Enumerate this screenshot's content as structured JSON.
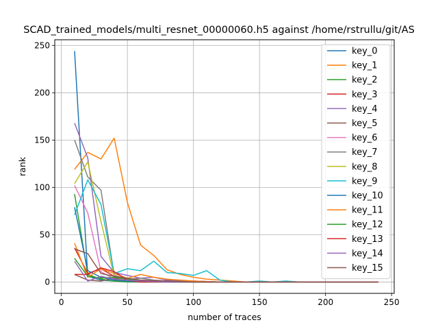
{
  "chart_data": {
    "type": "line",
    "title": "SCAD_trained_models/multi_resnet_00000060.h5 against /home/rstrullu/git/AS",
    "xlabel": "number of traces",
    "ylabel": "rank",
    "xlim": [
      -5,
      252
    ],
    "ylim": [
      -12,
      256
    ],
    "xticks": [
      0,
      50,
      100,
      150,
      200,
      250
    ],
    "yticks": [
      0,
      50,
      100,
      150,
      200,
      250
    ],
    "grid": true,
    "legend_position": "top-right",
    "series": [
      {
        "name": "key_0",
        "color": "#1f77b4",
        "x": [
          10,
          20,
          30,
          40,
          50,
          60,
          70,
          80,
          90,
          100,
          120,
          140,
          160,
          180,
          200,
          220,
          240
        ],
        "y": [
          244,
          6,
          2,
          1,
          0,
          0,
          0,
          0,
          0,
          0,
          0,
          0,
          0,
          0,
          0,
          0,
          0
        ]
      },
      {
        "name": "key_1",
        "color": "#ff7f0e",
        "x": [
          10,
          20,
          30,
          40,
          50,
          60,
          70,
          80,
          90,
          100,
          110,
          120,
          130,
          140,
          160,
          180,
          200,
          220,
          240
        ],
        "y": [
          119,
          137,
          130,
          152,
          84,
          39,
          28,
          13,
          8,
          5,
          3,
          2,
          1,
          0,
          0,
          0,
          0,
          0,
          0
        ]
      },
      {
        "name": "key_2",
        "color": "#2ca02c",
        "x": [
          10,
          20,
          30,
          40,
          50,
          60,
          80,
          100,
          120,
          140,
          160,
          180,
          200,
          220,
          240
        ],
        "y": [
          93,
          8,
          3,
          1,
          0,
          0,
          0,
          0,
          0,
          0,
          0,
          0,
          0,
          0,
          0
        ]
      },
      {
        "name": "key_3",
        "color": "#d62728",
        "x": [
          10,
          20,
          30,
          40,
          50,
          60,
          80,
          100,
          120,
          140,
          160,
          180,
          200,
          220,
          240
        ],
        "y": [
          36,
          9,
          14,
          6,
          2,
          1,
          0,
          0,
          0,
          0,
          0,
          0,
          0,
          0,
          0
        ]
      },
      {
        "name": "key_4",
        "color": "#9467bd",
        "x": [
          10,
          20,
          30,
          40,
          50,
          60,
          70,
          80,
          100,
          120,
          140,
          160,
          180,
          200,
          220,
          240
        ],
        "y": [
          168,
          131,
          27,
          10,
          7,
          4,
          5,
          2,
          1,
          0,
          0,
          0,
          0,
          0,
          0,
          0
        ]
      },
      {
        "name": "key_5",
        "color": "#8c564b",
        "x": [
          10,
          20,
          30,
          40,
          50,
          60,
          80,
          100,
          120,
          140,
          160,
          180,
          200,
          220,
          240
        ],
        "y": [
          8,
          2,
          1,
          4,
          2,
          1,
          0,
          0,
          0,
          0,
          0,
          0,
          0,
          0,
          0
        ]
      },
      {
        "name": "key_6",
        "color": "#e377c2",
        "x": [
          10,
          20,
          30,
          40,
          50,
          60,
          80,
          100,
          120,
          140,
          160,
          180,
          200,
          220,
          240
        ],
        "y": [
          102,
          73,
          11,
          3,
          1,
          0,
          0,
          0,
          0,
          0,
          0,
          0,
          0,
          0,
          0
        ]
      },
      {
        "name": "key_7",
        "color": "#7f7f7f",
        "x": [
          10,
          20,
          30,
          40,
          50,
          60,
          70,
          80,
          100,
          120,
          140,
          160,
          180,
          200,
          220,
          240
        ],
        "y": [
          150,
          111,
          97,
          7,
          3,
          4,
          2,
          1,
          1,
          0,
          0,
          0,
          0,
          0,
          0,
          0
        ]
      },
      {
        "name": "key_8",
        "color": "#bcbd22",
        "x": [
          10,
          20,
          30,
          40,
          50,
          60,
          80,
          100,
          120,
          140,
          160,
          180,
          200,
          220,
          240
        ],
        "y": [
          104,
          127,
          64,
          6,
          1,
          0,
          0,
          0,
          0,
          0,
          0,
          0,
          0,
          0,
          0
        ]
      },
      {
        "name": "key_9",
        "color": "#17becf",
        "x": [
          10,
          20,
          30,
          40,
          50,
          60,
          70,
          80,
          90,
          100,
          110,
          120,
          130,
          140,
          150,
          160,
          170,
          180,
          200,
          220,
          240
        ],
        "y": [
          71,
          108,
          82,
          9,
          14,
          12,
          22,
          10,
          9,
          7,
          12,
          2,
          0,
          0,
          1,
          0,
          1,
          0,
          0,
          0,
          0
        ]
      },
      {
        "name": "key_10",
        "color": "#1f77b4",
        "x": [
          10,
          20,
          30,
          40,
          50,
          60,
          80,
          100,
          120,
          140,
          160,
          180,
          200,
          220,
          240
        ],
        "y": [
          79,
          12,
          5,
          2,
          1,
          0,
          0,
          0,
          0,
          0,
          0,
          0,
          0,
          0,
          0
        ]
      },
      {
        "name": "key_11",
        "color": "#ff7f0e",
        "x": [
          10,
          20,
          30,
          40,
          50,
          60,
          70,
          80,
          100,
          120,
          140,
          160,
          180,
          200,
          220,
          240
        ],
        "y": [
          41,
          5,
          14,
          9,
          4,
          8,
          5,
          3,
          1,
          0,
          0,
          0,
          0,
          0,
          0,
          0
        ]
      },
      {
        "name": "key_12",
        "color": "#2ca02c",
        "x": [
          10,
          20,
          30,
          40,
          50,
          60,
          80,
          100,
          120,
          140,
          160,
          180,
          200,
          220,
          240
        ],
        "y": [
          25,
          6,
          4,
          5,
          3,
          1,
          0,
          0,
          0,
          0,
          0,
          0,
          0,
          0,
          0
        ]
      },
      {
        "name": "key_13",
        "color": "#d62728",
        "x": [
          10,
          20,
          30,
          40,
          50,
          60,
          80,
          100,
          120,
          140,
          160,
          180,
          200,
          220,
          240
        ],
        "y": [
          8,
          8,
          15,
          11,
          2,
          0,
          0,
          0,
          0,
          0,
          0,
          0,
          0,
          0,
          0
        ]
      },
      {
        "name": "key_14",
        "color": "#9467bd",
        "x": [
          10,
          20,
          30,
          40,
          50,
          60,
          80,
          100,
          120,
          140,
          160,
          180,
          200,
          220,
          240
        ],
        "y": [
          22,
          1,
          6,
          3,
          2,
          1,
          0,
          0,
          0,
          0,
          0,
          0,
          0,
          0,
          0
        ]
      },
      {
        "name": "key_15",
        "color": "#8c564b",
        "x": [
          10,
          20,
          30,
          40,
          50,
          60,
          80,
          100,
          120,
          140,
          160,
          180,
          200,
          220,
          240
        ],
        "y": [
          35,
          30,
          9,
          6,
          4,
          2,
          1,
          0,
          0,
          0,
          0,
          0,
          0,
          0,
          0
        ]
      }
    ]
  }
}
